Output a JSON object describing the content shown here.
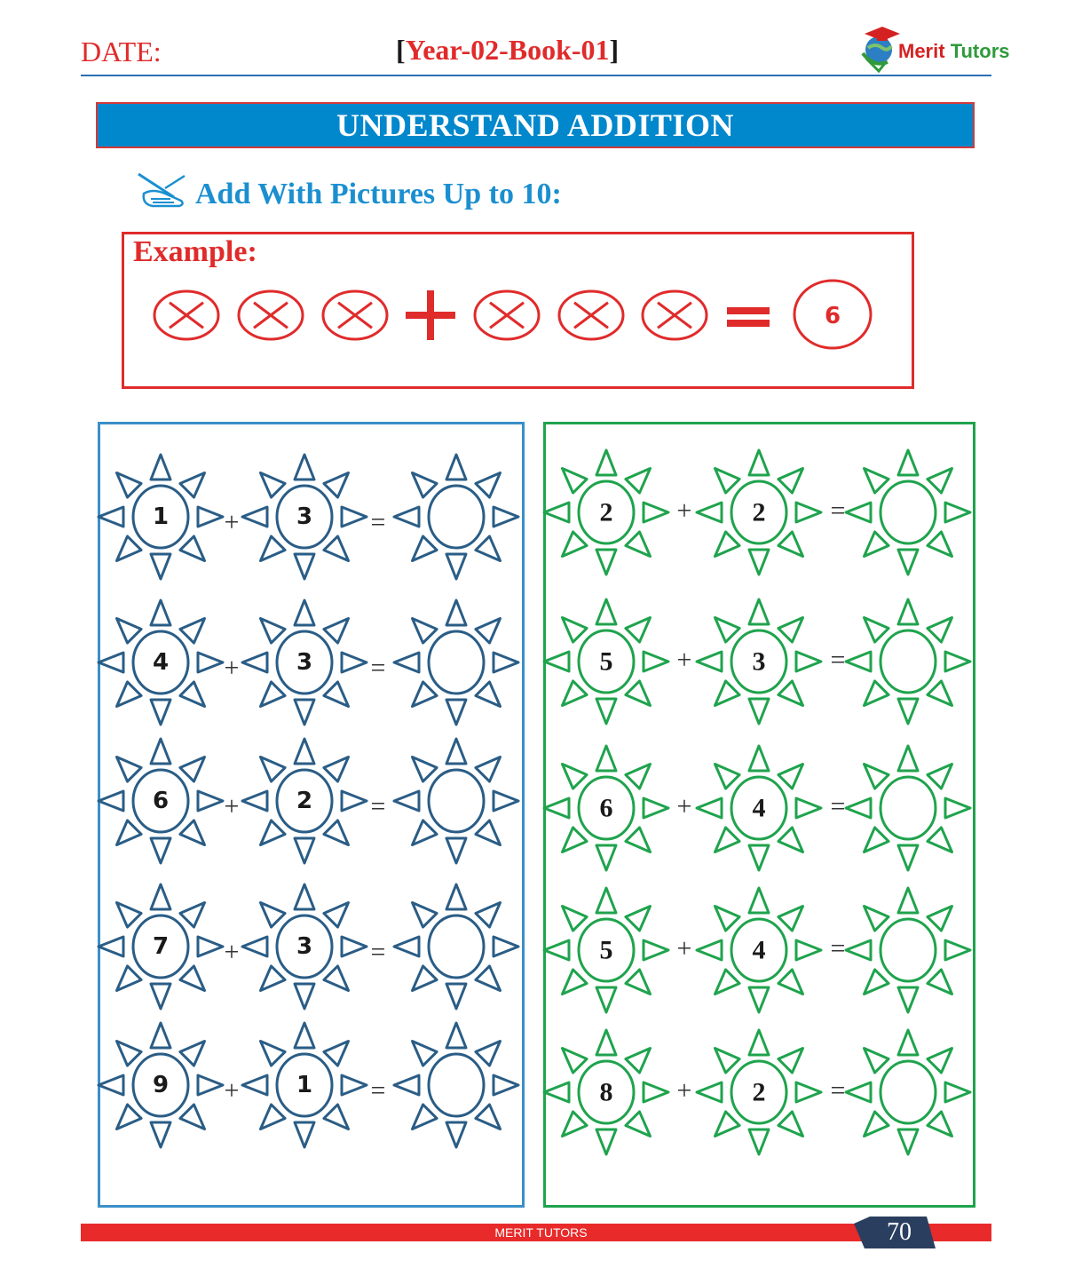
{
  "header": {
    "date_label": "DATE:",
    "book_code": "Year-02-Book-01",
    "logo_brand_1": "Merit",
    "logo_brand_2": "Tutors"
  },
  "banner": {
    "title": "UNDERSTAND ADDITION"
  },
  "instruction": {
    "text": "Add With Pictures Up to 10:",
    "icon": "pencil-hand-icon"
  },
  "example": {
    "label": "Example:",
    "left_count": 3,
    "right_count": 3,
    "plus": "+",
    "equals": "=",
    "answer": "6"
  },
  "panels": {
    "left": {
      "color": "#2a5d86",
      "problems": [
        {
          "a": "1",
          "b": "3",
          "answer": ""
        },
        {
          "a": "4",
          "b": "3",
          "answer": ""
        },
        {
          "a": "6",
          "b": "2",
          "answer": ""
        },
        {
          "a": "7",
          "b": "3",
          "answer": ""
        },
        {
          "a": "9",
          "b": "1",
          "answer": ""
        }
      ]
    },
    "right": {
      "color": "#1fa34d",
      "problems": [
        {
          "a": "2",
          "b": "2",
          "answer": ""
        },
        {
          "a": "5",
          "b": "3",
          "answer": ""
        },
        {
          "a": "6",
          "b": "4",
          "answer": ""
        },
        {
          "a": "5",
          "b": "4",
          "answer": ""
        },
        {
          "a": "8",
          "b": "2",
          "answer": ""
        }
      ]
    },
    "plus": "+",
    "equals": "="
  },
  "footer": {
    "text": "MERIT TUTORS",
    "page_number": "70"
  }
}
